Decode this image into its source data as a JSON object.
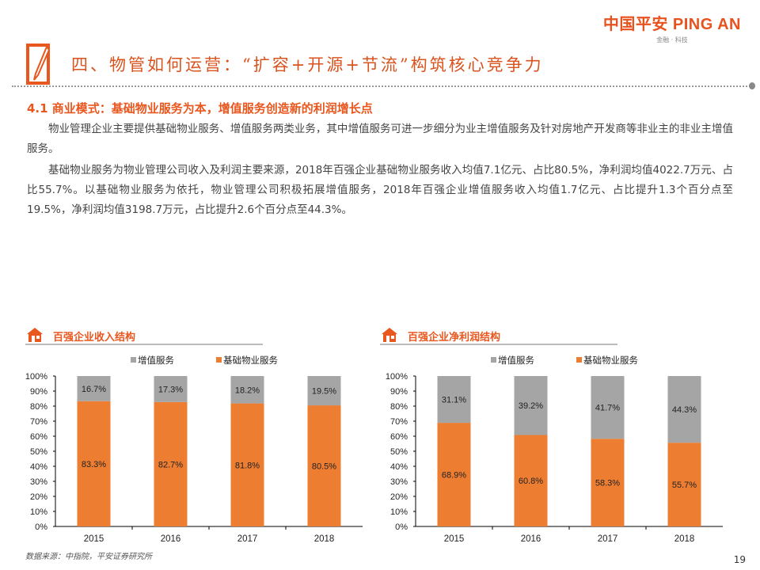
{
  "logo": {
    "main": "中国平安 PING AN",
    "sub": "金融 · 科技"
  },
  "title": "四、物管如何运营：“扩容+开源+节流”构筑核心竞争力",
  "heading": "4.1  商业模式：基础物业服务为本，增值服务创造新的利润增长点",
  "paragraphs": [
    "物业管理企业主要提供基础物业服务、增值服务两类业务，其中增值服务可进一步细分为业主增值服务及针对房地产开发商等非业主的非业主增值服务。",
    "基础物业服务为物业管理公司收入及利润主要来源，2018年百强企业基础物业服务收入均值7.1亿元、占比80.5%，净利润均值4022.7万元、占比55.7%。以基础物业服务为依托，物业管理公司积极拓展增值服务，2018年百强企业增值服务收入均值1.7亿元、占比提升1.3个百分点至19.5%，净利润均值3198.7万元，占比提升2.6个百分点至44.3%。"
  ],
  "colors": {
    "accent": "#e8571e",
    "basic": "#ED7D31",
    "value_added": "#A5A5A5"
  },
  "chart_data": [
    {
      "type": "bar",
      "stacked": true,
      "title": "百强企业收入结构",
      "categories": [
        "2015",
        "2016",
        "2017",
        "2018"
      ],
      "series": [
        {
          "name": "增值服务",
          "values": [
            16.7,
            17.3,
            18.2,
            19.5
          ]
        },
        {
          "name": "基础物业服务",
          "values": [
            83.3,
            82.7,
            81.8,
            80.5
          ]
        }
      ],
      "ylim": [
        0,
        100
      ],
      "yticks": [
        "0%",
        "10%",
        "20%",
        "30%",
        "40%",
        "50%",
        "60%",
        "70%",
        "80%",
        "90%",
        "100%"
      ],
      "legend": "top",
      "grid": false
    },
    {
      "type": "bar",
      "stacked": true,
      "title": "百强企业净利润结构",
      "categories": [
        "2015",
        "2016",
        "2017",
        "2018"
      ],
      "series": [
        {
          "name": "增值服务",
          "values": [
            31.1,
            39.2,
            41.7,
            44.3
          ]
        },
        {
          "name": "基础物业服务",
          "values": [
            68.9,
            60.8,
            58.3,
            55.7
          ]
        }
      ],
      "ylim": [
        0,
        100
      ],
      "yticks": [
        "0%",
        "10%",
        "20%",
        "30%",
        "40%",
        "50%",
        "60%",
        "70%",
        "80%",
        "90%",
        "100%"
      ],
      "legend": "top",
      "grid": false
    }
  ],
  "source": "数据来源：中指院，平安证券研究所",
  "page_number": "19"
}
